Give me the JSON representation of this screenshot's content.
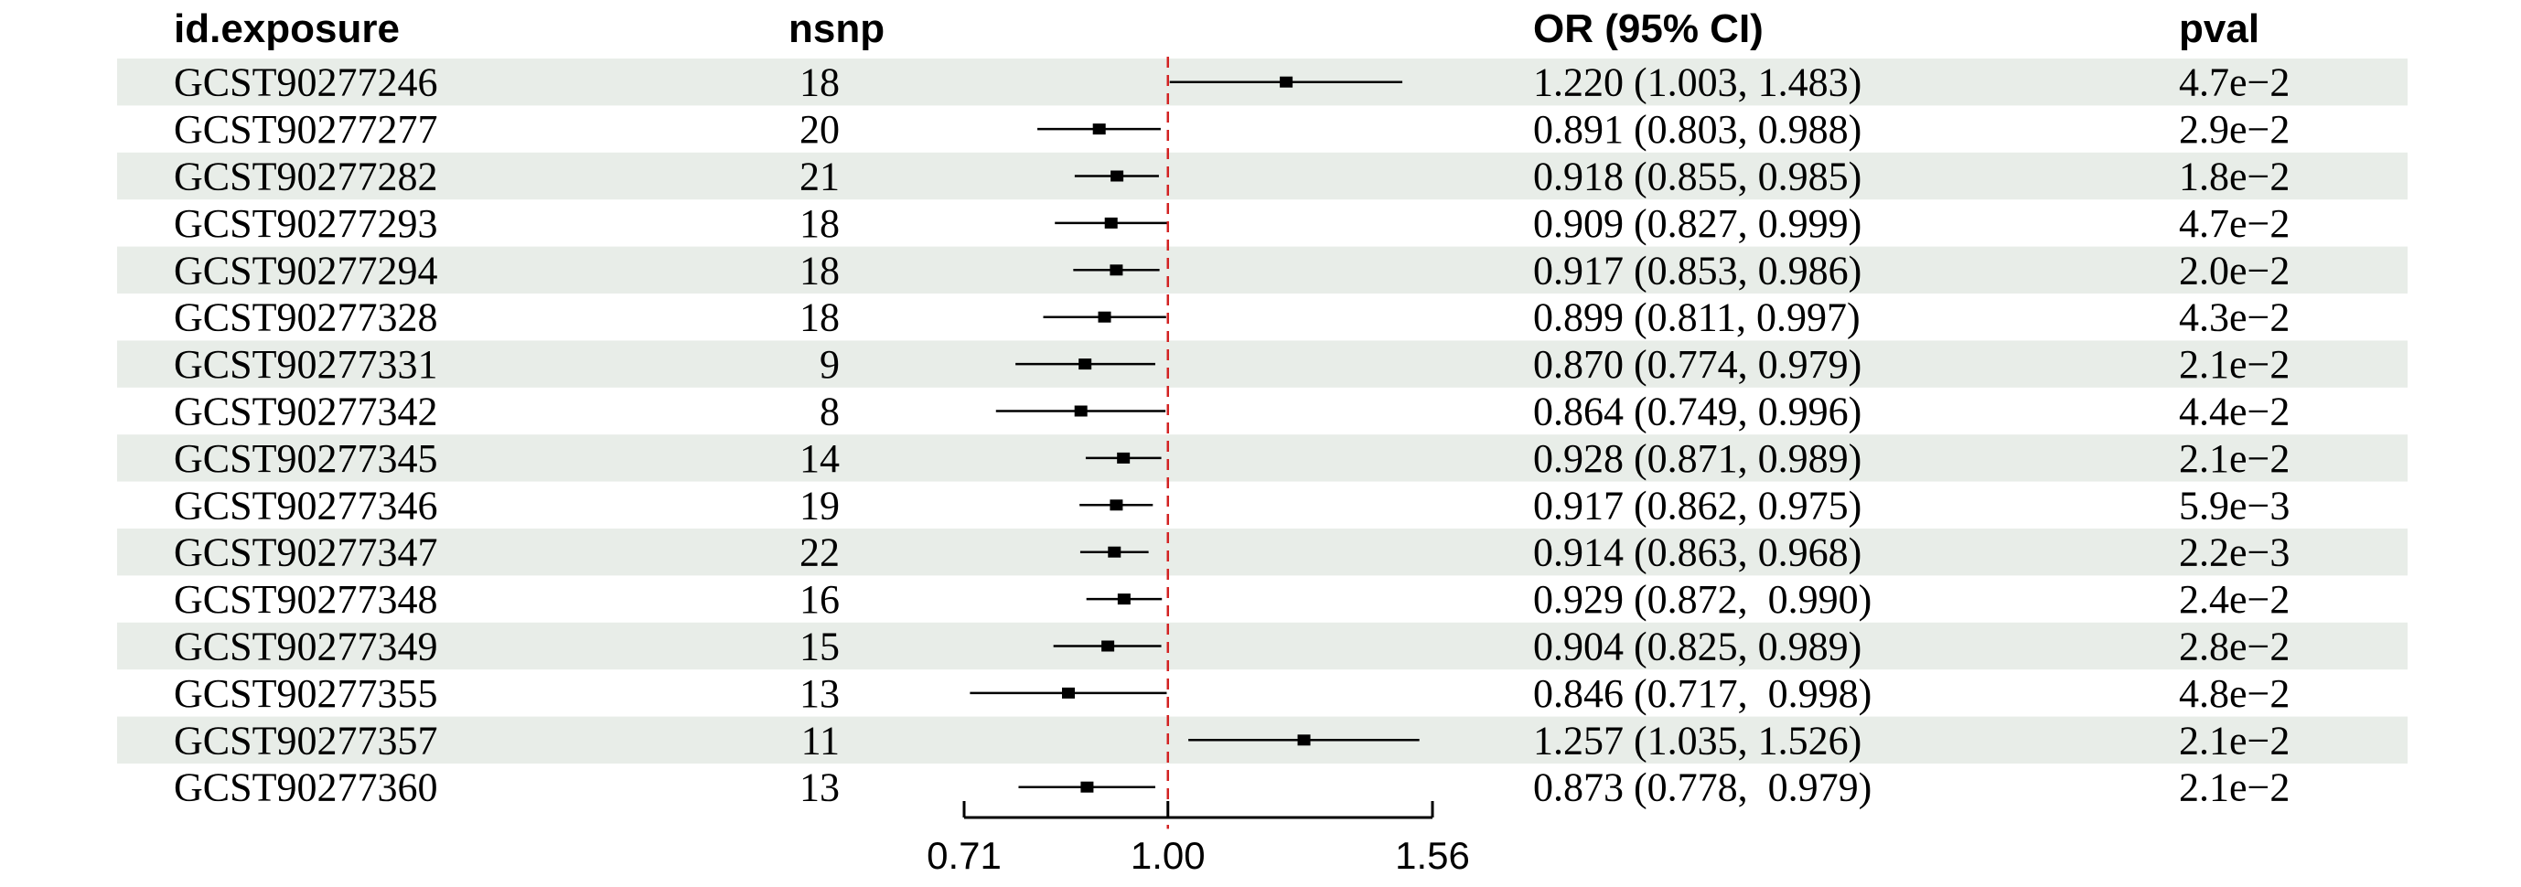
{
  "headers": {
    "exposure": "id.exposure",
    "nsnp": "nsnp",
    "or": "OR (95% CI)",
    "pval": "pval"
  },
  "colors": {
    "stripe": "#e8ede8",
    "ref_line": "#d22222",
    "marker": "#000000"
  },
  "chart_data": {
    "type": "forest",
    "scale": "log",
    "reference": 1.0,
    "xlim": [
      0.71,
      1.56
    ],
    "xticks": [
      "0.71",
      "1.00",
      "1.56"
    ],
    "xtick_values": [
      0.71,
      1.0,
      1.56
    ],
    "rows": [
      {
        "exposure": "GCST90277246",
        "nsnp": "18",
        "or_text": "1.220 (1.003, 1.483)",
        "pval": "4.7e−2",
        "or": 1.22,
        "lo": 1.003,
        "hi": 1.483
      },
      {
        "exposure": "GCST90277277",
        "nsnp": "20",
        "or_text": "0.891 (0.803, 0.988)",
        "pval": "2.9e−2",
        "or": 0.891,
        "lo": 0.803,
        "hi": 0.988
      },
      {
        "exposure": "GCST90277282",
        "nsnp": "21",
        "or_text": "0.918 (0.855, 0.985)",
        "pval": "1.8e−2",
        "or": 0.918,
        "lo": 0.855,
        "hi": 0.985
      },
      {
        "exposure": "GCST90277293",
        "nsnp": "18",
        "or_text": "0.909 (0.827, 0.999)",
        "pval": "4.7e−2",
        "or": 0.909,
        "lo": 0.827,
        "hi": 0.999
      },
      {
        "exposure": "GCST90277294",
        "nsnp": "18",
        "or_text": "0.917 (0.853, 0.986)",
        "pval": "2.0e−2",
        "or": 0.917,
        "lo": 0.853,
        "hi": 0.986
      },
      {
        "exposure": "GCST90277328",
        "nsnp": "18",
        "or_text": "0.899 (0.811, 0.997)",
        "pval": "4.3e−2",
        "or": 0.899,
        "lo": 0.811,
        "hi": 0.997
      },
      {
        "exposure": "GCST90277331",
        "nsnp": "9",
        "or_text": "0.870 (0.774, 0.979)",
        "pval": "2.1e−2",
        "or": 0.87,
        "lo": 0.774,
        "hi": 0.979
      },
      {
        "exposure": "GCST90277342",
        "nsnp": "8",
        "or_text": "0.864 (0.749, 0.996)",
        "pval": "4.4e−2",
        "or": 0.864,
        "lo": 0.749,
        "hi": 0.996
      },
      {
        "exposure": "GCST90277345",
        "nsnp": "14",
        "or_text": "0.928 (0.871, 0.989)",
        "pval": "2.1e−2",
        "or": 0.928,
        "lo": 0.871,
        "hi": 0.989
      },
      {
        "exposure": "GCST90277346",
        "nsnp": "19",
        "or_text": "0.917 (0.862, 0.975)",
        "pval": "5.9e−3",
        "or": 0.917,
        "lo": 0.862,
        "hi": 0.975
      },
      {
        "exposure": "GCST90277347",
        "nsnp": "22",
        "or_text": "0.914 (0.863, 0.968)",
        "pval": "2.2e−3",
        "or": 0.914,
        "lo": 0.863,
        "hi": 0.968
      },
      {
        "exposure": "GCST90277348",
        "nsnp": "16",
        "or_text": "0.929 (0.872,  0.990)",
        "pval": "2.4e−2",
        "or": 0.929,
        "lo": 0.872,
        "hi": 0.99
      },
      {
        "exposure": "GCST90277349",
        "nsnp": "15",
        "or_text": "0.904 (0.825, 0.989)",
        "pval": "2.8e−2",
        "or": 0.904,
        "lo": 0.825,
        "hi": 0.989
      },
      {
        "exposure": "GCST90277355",
        "nsnp": "13",
        "or_text": "0.846 (0.717,  0.998)",
        "pval": "4.8e−2",
        "or": 0.846,
        "lo": 0.717,
        "hi": 0.998
      },
      {
        "exposure": "GCST90277357",
        "nsnp": "11",
        "or_text": "1.257 (1.035, 1.526)",
        "pval": "2.1e−2",
        "or": 1.257,
        "lo": 1.035,
        "hi": 1.526
      },
      {
        "exposure": "GCST90277360",
        "nsnp": "13",
        "or_text": "0.873 (0.778,  0.979)",
        "pval": "2.1e−2",
        "or": 0.873,
        "lo": 0.778,
        "hi": 0.979
      }
    ]
  }
}
